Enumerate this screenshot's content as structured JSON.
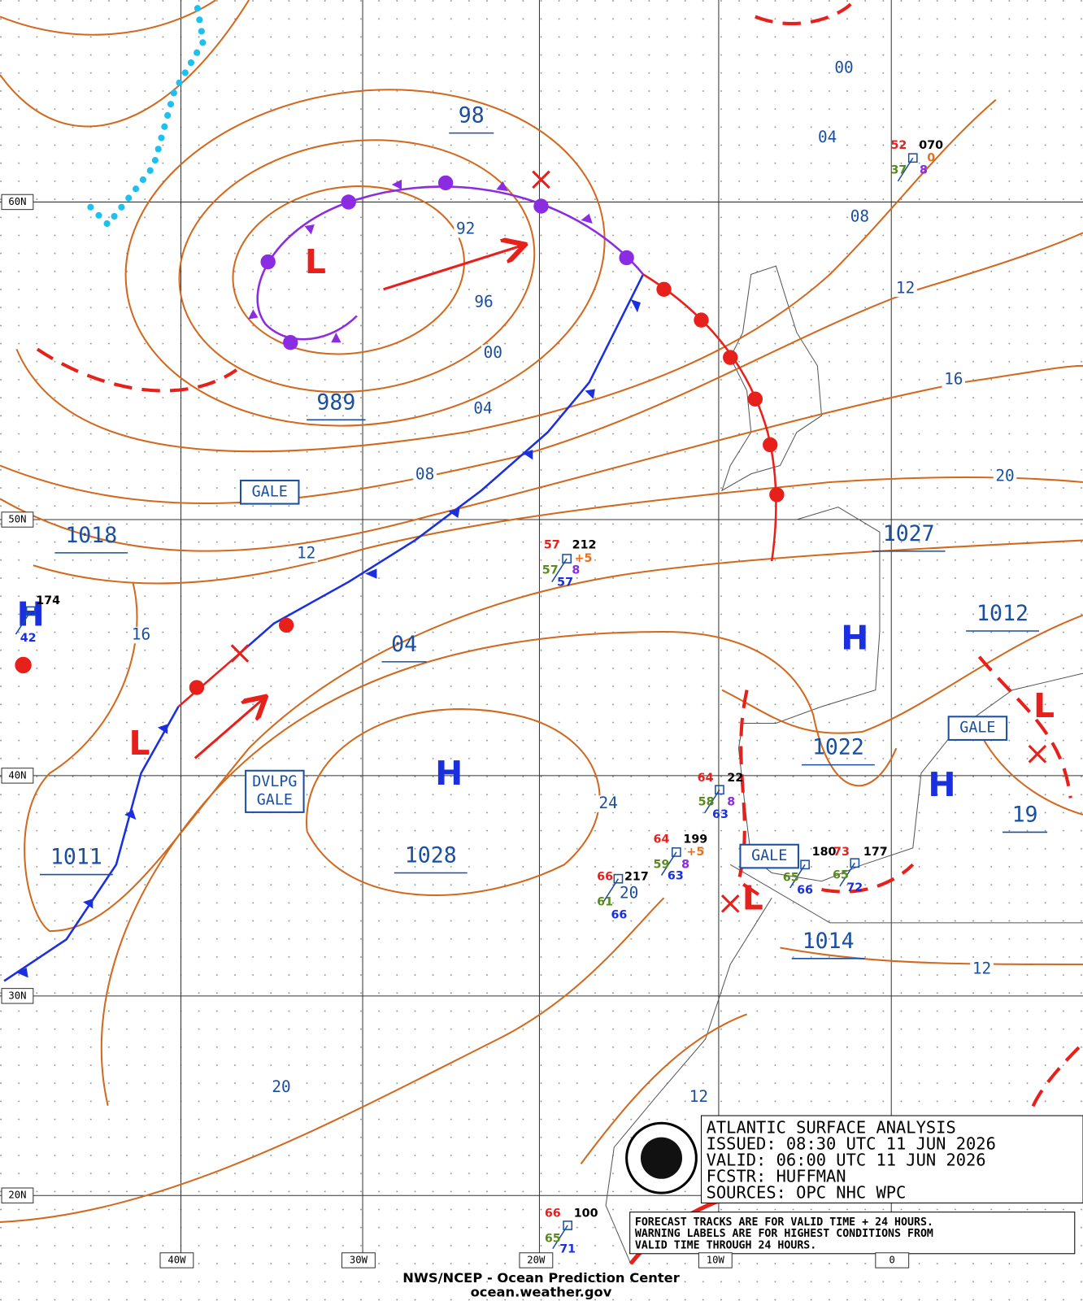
{
  "title_box": {
    "lines": [
      "ATLANTIC SURFACE ANALYSIS",
      "ISSUED: 08:30 UTC 11 JUN 2026",
      "VALID:  06:00 UTC 11 JUN 2026",
      "FCSTR:   HUFFMAN",
      "SOURCES:  OPC NHC WPC"
    ]
  },
  "note_box": {
    "lines": [
      "FORECAST TRACKS ARE FOR VALID TIME + 24 HOURS.",
      "WARNING LABELS ARE FOR HIGHEST CONDITIONS FROM",
      "VALID TIME THROUGH 24 HOURS."
    ]
  },
  "footer": {
    "agency": "NWS/NCEP - Ocean Prediction Center",
    "url": "ocean.weather.gov"
  },
  "grid": {
    "lat_labels": [
      "60N",
      "50N",
      "40N",
      "30N",
      "20N"
    ],
    "lon_labels": [
      "40W",
      "30W",
      "20W",
      "10W",
      "0"
    ]
  },
  "pressure_labels": [
    "98",
    "989",
    "1018",
    "04",
    "1028",
    "1011",
    "1027",
    "1012",
    "1022",
    "19",
    "1014"
  ],
  "isobar_labels": [
    "00",
    "04",
    "08",
    "12",
    "16",
    "20",
    "92",
    "96",
    "00",
    "04",
    "08",
    "12",
    "16",
    "24",
    "20",
    "12",
    "20",
    "12"
  ],
  "centers": [
    "H",
    "H",
    "H",
    "H",
    "L",
    "L",
    "L",
    "L"
  ],
  "warnings": [
    [
      "GALE"
    ],
    [
      "DVLPG",
      "GALE"
    ],
    [
      "GALE"
    ],
    [
      "GALE"
    ]
  ],
  "stations": [
    [
      "52",
      "070",
      "37",
      "8",
      "0"
    ],
    [
      "57",
      "212",
      "57",
      "+5",
      "8",
      "57"
    ],
    [
      "174",
      "42"
    ],
    [
      "64",
      "22",
      "58",
      "8",
      "63"
    ],
    [
      "64",
      "199",
      "59",
      "+5",
      "8",
      "63"
    ],
    [
      "66",
      "217",
      "61",
      "66"
    ],
    [
      "180",
      "65",
      "66"
    ],
    [
      "73",
      "177",
      "65",
      "72"
    ],
    [
      "66",
      "100",
      "65",
      "71"
    ]
  ]
}
